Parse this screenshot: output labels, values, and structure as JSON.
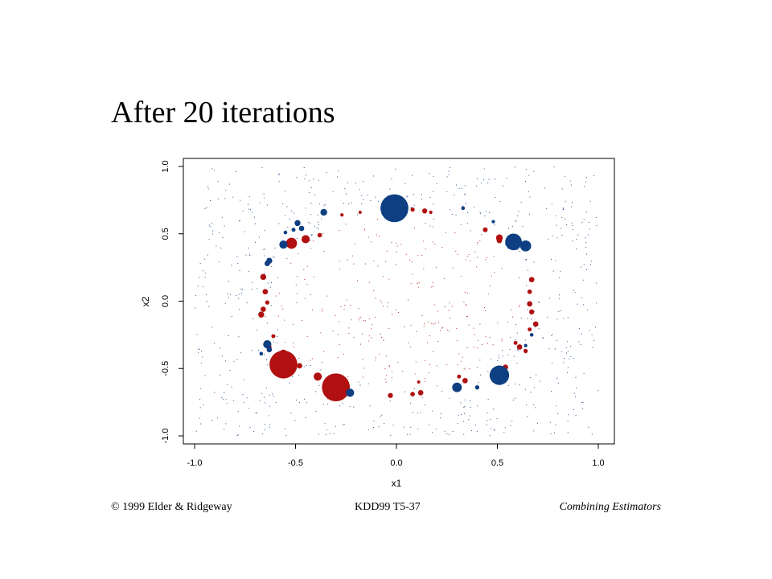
{
  "slide": {
    "title": "After 20 iterations"
  },
  "footer": {
    "left": "© 1999 Elder & Ridgeway",
    "center": "KDD99 T5-37",
    "right": "Combining Estimators"
  },
  "colors": {
    "red": "#b01010",
    "blue": "#0d3f82",
    "dot": "#222222"
  },
  "chart_data": {
    "type": "scatter",
    "title": "",
    "xlabel": "x1",
    "ylabel": "x2",
    "xlim": [
      -1.0,
      1.0
    ],
    "ylim": [
      -1.0,
      1.0
    ],
    "xticks": [
      "-1.0",
      "-0.5",
      "0.0",
      "0.5",
      "1.0"
    ],
    "yticks": [
      "-1.0",
      "-0.5",
      "0.0",
      "0.5",
      "1.0"
    ],
    "grid": false,
    "legend": "none",
    "series": [
      {
        "class": "red",
        "points": [
          [
            -0.01,
            0.7,
            0.3
          ],
          [
            0.08,
            0.68,
            0.6
          ],
          [
            0.14,
            0.67,
            0.9
          ],
          [
            0.17,
            0.66,
            0.3
          ],
          [
            -0.18,
            0.66,
            0.2
          ],
          [
            0.44,
            0.53,
            0.8
          ],
          [
            0.51,
            0.47,
            1.5
          ],
          [
            0.51,
            0.45,
            1.0
          ],
          [
            0.57,
            0.46,
            1.0
          ],
          [
            -0.52,
            0.43,
            3.0
          ],
          [
            -0.45,
            0.46,
            2.0
          ],
          [
            -0.38,
            0.49,
            0.7
          ],
          [
            0.67,
            0.16,
            1.0
          ],
          [
            0.66,
            0.07,
            0.7
          ],
          [
            0.66,
            -0.02,
            1.0
          ],
          [
            0.67,
            -0.08,
            0.9
          ],
          [
            0.69,
            -0.17,
            1.0
          ],
          [
            0.66,
            -0.21,
            0.5
          ],
          [
            0.61,
            -0.34,
            1.0
          ],
          [
            0.64,
            -0.37,
            0.6
          ],
          [
            0.59,
            -0.31,
            0.5
          ],
          [
            0.54,
            -0.49,
            1.0
          ],
          [
            0.5,
            -0.52,
            0.6
          ],
          [
            0.34,
            -0.59,
            1.0
          ],
          [
            0.31,
            -0.56,
            0.5
          ],
          [
            0.12,
            -0.68,
            1.0
          ],
          [
            0.08,
            -0.69,
            0.7
          ],
          [
            -0.03,
            -0.7,
            0.9
          ],
          [
            -0.3,
            -0.64,
            9.0
          ],
          [
            -0.39,
            -0.56,
            2.0
          ],
          [
            -0.56,
            -0.47,
            9.0
          ],
          [
            -0.56,
            -0.39,
            2.0
          ],
          [
            -0.48,
            -0.48,
            1.0
          ],
          [
            -0.66,
            0.18,
            1.2
          ],
          [
            -0.65,
            0.07,
            1.0
          ],
          [
            -0.64,
            -0.01,
            0.6
          ],
          [
            -0.66,
            -0.06,
            1.0
          ],
          [
            -0.67,
            -0.1,
            1.2
          ],
          [
            -0.61,
            -0.26,
            0.5
          ],
          [
            -0.63,
            -0.34,
            0.7
          ],
          [
            -0.27,
            0.64,
            0.3
          ],
          [
            0.11,
            -0.6,
            0.2
          ]
        ]
      },
      {
        "class": "blue",
        "points": [
          [
            -0.01,
            0.69,
            9.0
          ],
          [
            -0.36,
            0.66,
            1.5
          ],
          [
            -0.49,
            0.58,
            1.2
          ],
          [
            -0.47,
            0.54,
            1.0
          ],
          [
            -0.51,
            0.53,
            0.5
          ],
          [
            -0.55,
            0.51,
            0.4
          ],
          [
            -0.56,
            0.42,
            2.0
          ],
          [
            -0.63,
            0.3,
            1.2
          ],
          [
            -0.64,
            0.28,
            1.0
          ],
          [
            -0.64,
            -0.32,
            2.0
          ],
          [
            -0.63,
            -0.36,
            1.0
          ],
          [
            -0.67,
            -0.39,
            0.4
          ],
          [
            -0.23,
            -0.68,
            2.0
          ],
          [
            0.33,
            0.69,
            0.4
          ],
          [
            0.48,
            0.59,
            0.3
          ],
          [
            0.58,
            0.44,
            5.0
          ],
          [
            0.64,
            0.41,
            3.0
          ],
          [
            0.67,
            -0.25,
            0.4
          ],
          [
            0.51,
            -0.55,
            6.0
          ],
          [
            0.3,
            -0.64,
            2.5
          ],
          [
            0.4,
            -0.64,
            0.6
          ],
          [
            0.64,
            -0.33,
            0.3
          ]
        ]
      }
    ]
  }
}
